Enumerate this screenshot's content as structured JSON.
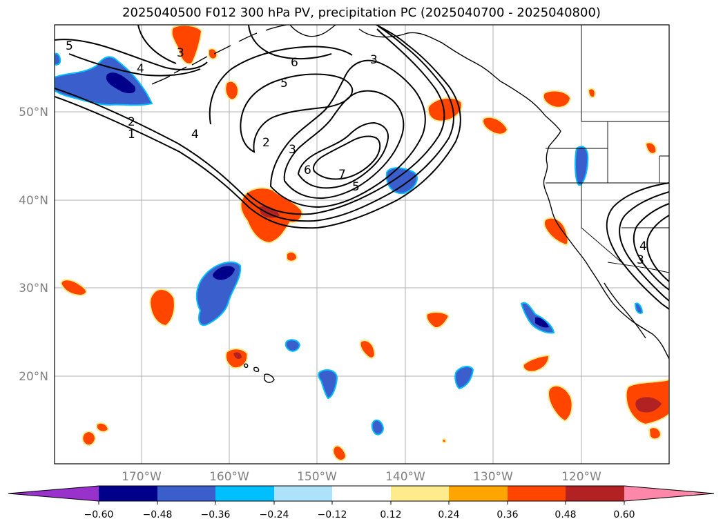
{
  "title": "2025040500 F012 300 hPa PV, precipitation PC (2025040700 - 2025040800)",
  "lat_labels": [
    "50°N",
    "40°N",
    "30°N",
    "20°N"
  ],
  "lon_labels": [
    "170°W",
    "160°W",
    "150°W",
    "140°W",
    "130°W",
    "120°W"
  ],
  "pv_contour_labels": [
    "5",
    "3",
    "4",
    "6",
    "3",
    "5",
    "2",
    "1",
    "4",
    "2",
    "3",
    "6",
    "7",
    "5",
    "4",
    "3"
  ],
  "colorbar": {
    "ticks": [
      "−0.60",
      "−0.48",
      "−0.36",
      "−0.24",
      "−0.12",
      "0.12",
      "0.24",
      "0.36",
      "0.48",
      "0.60"
    ],
    "colors": [
      "#9932cc",
      "#00008b",
      "#3a5fcd",
      "#00bfff",
      "#aee2fa",
      "#ffffff",
      "#fdeb8c",
      "#ffa500",
      "#ff4500",
      "#b22222",
      "#ff88aa"
    ]
  },
  "colors": {
    "neg_strong": "#00008b",
    "neg_mid": "#3a5fcd",
    "neg_light": "#00bfff",
    "pos_light": "#fdeb8c",
    "pos_mid": "#ff4500",
    "pos_strong": "#b22222"
  }
}
